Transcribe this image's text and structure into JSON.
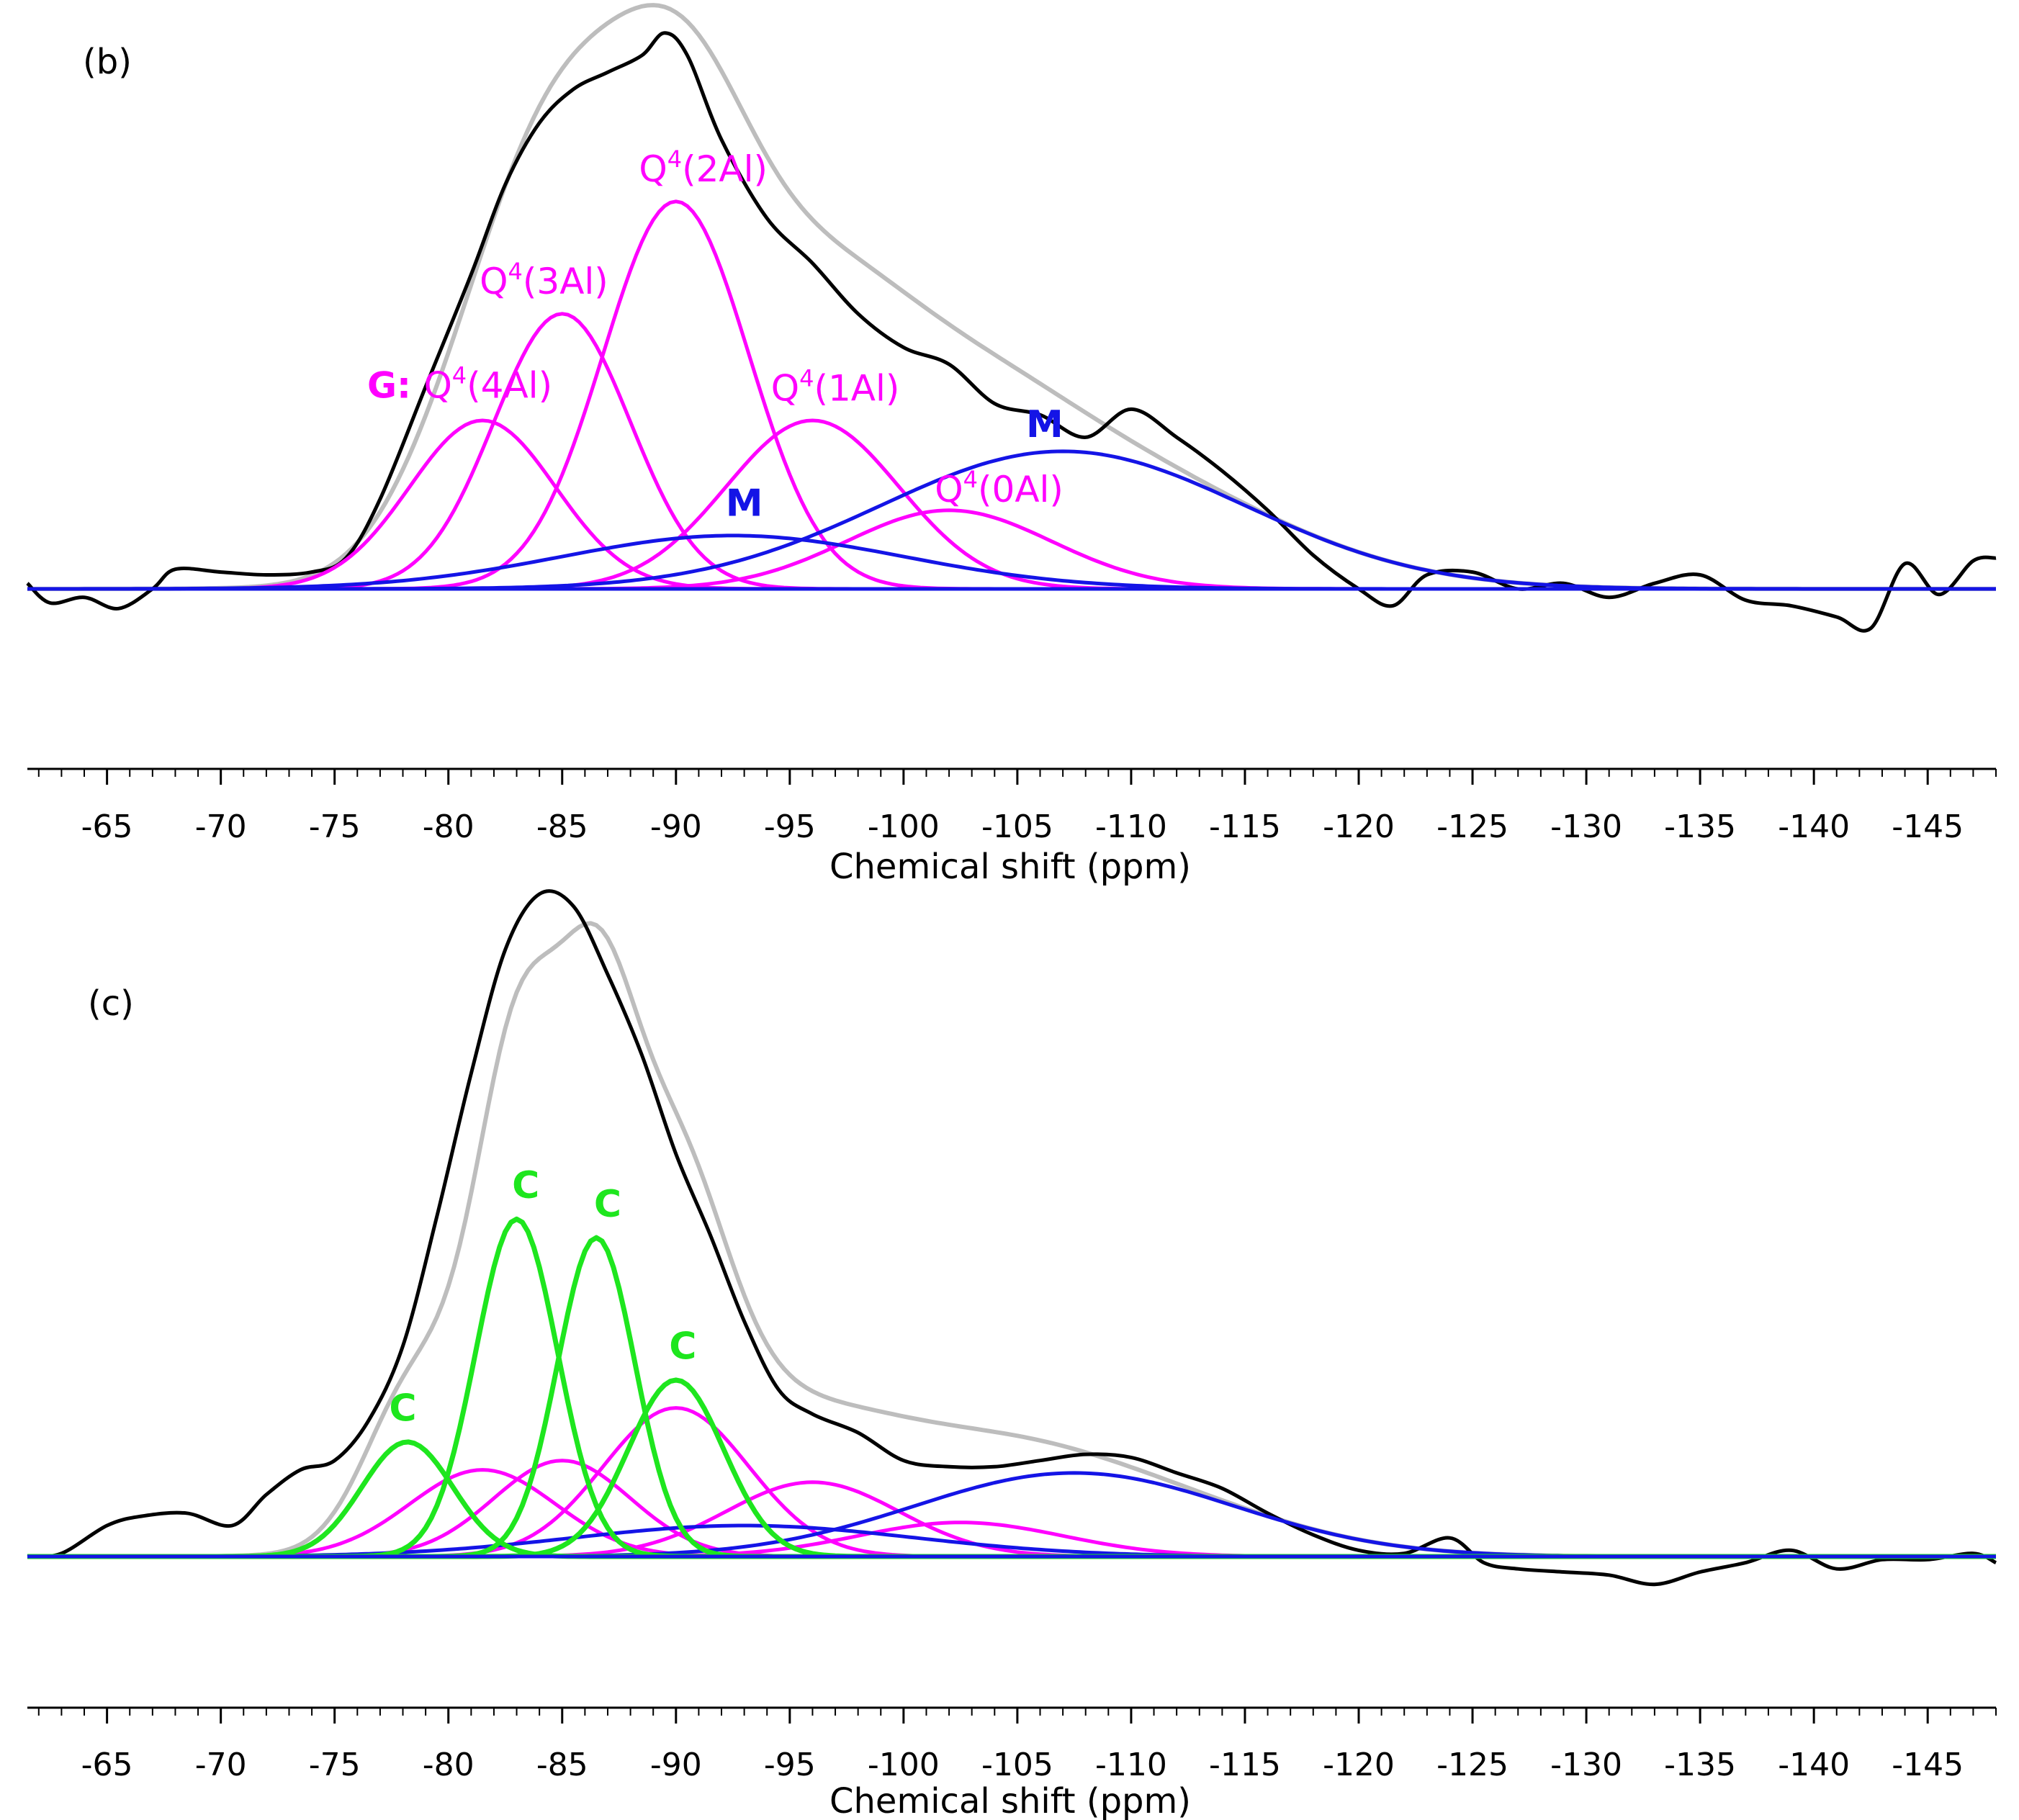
{
  "colors": {
    "experimental": "#000000",
    "total_fit": "#bdbdbd",
    "gel_G": "#ff00ff",
    "mineral_M": "#1414e6",
    "crystalline_C": "#1ee61e",
    "axis": "#000000"
  },
  "chart_data": [
    {
      "type": "line",
      "panel_label": "(b)",
      "xlabel": "Chemical shift (ppm)",
      "ylabel": "",
      "xlim": [
        -61.5,
        -148
      ],
      "ylim": [
        -0.35,
        1.0
      ],
      "x_ticks": [
        -65,
        -70,
        -75,
        -80,
        -85,
        -90,
        -95,
        -100,
        -105,
        -110,
        -115,
        -120,
        -125,
        -130,
        -135,
        -140,
        -145
      ],
      "x_tick_labels": [
        "-65",
        "-70",
        "-75",
        "-80",
        "-85",
        "-90",
        "-95",
        "-100",
        "-105",
        "-110",
        "-115",
        "-120",
        "-125",
        "-130",
        "-135",
        "-140",
        "-145"
      ],
      "grid": false,
      "baseline": 0,
      "series": [
        {
          "name": "Q4(4Al)",
          "group": "G",
          "color_key": "gel_G",
          "center": -81.5,
          "height": 0.3,
          "width": 3.2
        },
        {
          "name": "Q4(3Al)",
          "group": "G",
          "color_key": "gel_G",
          "center": -85.0,
          "height": 0.49,
          "width": 3.0
        },
        {
          "name": "Q4(2Al)",
          "group": "G",
          "color_key": "gel_G",
          "center": -90.0,
          "height": 0.69,
          "width": 3.2
        },
        {
          "name": "Q4(1Al)",
          "group": "G",
          "color_key": "gel_G",
          "center": -96.0,
          "height": 0.3,
          "width": 3.8
        },
        {
          "name": "Q4(0Al)",
          "group": "G",
          "color_key": "gel_G",
          "center": -102.0,
          "height": 0.14,
          "width": 4.5
        },
        {
          "name": "M",
          "group": "M",
          "color_key": "mineral_M",
          "center": -92.5,
          "height": 0.095,
          "width": 7.5
        },
        {
          "name": "M",
          "group": "M",
          "color_key": "mineral_M",
          "center": -107.0,
          "height": 0.245,
          "width": 8.0
        }
      ],
      "experimental": {
        "x": [
          -61.5,
          -62.5,
          -64,
          -65.5,
          -67,
          -68,
          -70,
          -72,
          -74,
          -75.5,
          -77,
          -79,
          -81,
          -82.5,
          -84,
          -85.5,
          -87,
          -88.5,
          -89.5,
          -90.5,
          -92,
          -94,
          -96,
          -98,
          -100,
          -102,
          -104,
          -106,
          -108,
          -110,
          -112,
          -114,
          -116,
          -118,
          -120,
          -121.5,
          -123,
          -125,
          -127,
          -129,
          -131,
          -133,
          -135,
          -137,
          -139,
          -141,
          -142.5,
          -144,
          -145.5,
          -147,
          -148
        ],
        "y": [
          0.01,
          -0.025,
          -0.015,
          -0.035,
          0.0,
          0.035,
          0.03,
          0.025,
          0.03,
          0.055,
          0.16,
          0.36,
          0.56,
          0.72,
          0.83,
          0.89,
          0.92,
          0.95,
          0.99,
          0.95,
          0.8,
          0.66,
          0.58,
          0.49,
          0.43,
          0.4,
          0.33,
          0.31,
          0.27,
          0.32,
          0.27,
          0.21,
          0.14,
          0.06,
          0.0,
          -0.03,
          0.025,
          0.03,
          0.0,
          0.01,
          -0.015,
          0.01,
          0.025,
          -0.02,
          -0.03,
          -0.05,
          -0.07,
          0.045,
          -0.01,
          0.05,
          0.055
        ]
      },
      "annotations": [
        {
          "id": "q4_4al",
          "prefix": "G: ",
          "main": "Q",
          "sup": "4",
          "suffix": "(4Al)",
          "color_key": "gel_G",
          "x": -80.5,
          "y": 0.325,
          "anchor": "middle"
        },
        {
          "id": "q4_3al",
          "prefix": "",
          "main": "Q",
          "sup": "4",
          "suffix": "(3Al)",
          "color_key": "gel_G",
          "x": -84.2,
          "y": 0.51,
          "anchor": "middle"
        },
        {
          "id": "q4_2al",
          "prefix": "",
          "main": "Q",
          "sup": "4",
          "suffix": "(2Al)",
          "color_key": "gel_G",
          "x": -91.2,
          "y": 0.71,
          "anchor": "middle"
        },
        {
          "id": "q4_1al",
          "prefix": "",
          "main": "Q",
          "sup": "4",
          "suffix": "(1Al)",
          "color_key": "gel_G",
          "x": -97.0,
          "y": 0.32,
          "anchor": "middle"
        },
        {
          "id": "q4_0al",
          "prefix": "",
          "main": "Q",
          "sup": "4",
          "suffix": "(0Al)",
          "color_key": "gel_G",
          "x": -104.2,
          "y": 0.14,
          "anchor": "middle"
        },
        {
          "id": "m_small",
          "prefix": "",
          "main": "M",
          "sup": "",
          "suffix": "",
          "color_key": "mineral_M",
          "x": -93.0,
          "y": 0.115,
          "anchor": "middle",
          "bold": true
        },
        {
          "id": "m_large",
          "prefix": "",
          "main": "M",
          "sup": "",
          "suffix": "",
          "color_key": "mineral_M",
          "x": -106.2,
          "y": 0.255,
          "anchor": "middle",
          "bold": true
        }
      ]
    },
    {
      "type": "line",
      "panel_label": "(c)",
      "xlabel": "Chemical shift (ppm)",
      "ylabel": "",
      "xlim": [
        -61.5,
        -148
      ],
      "ylim": [
        -0.25,
        1.0
      ],
      "x_ticks": [
        -65,
        -70,
        -75,
        -80,
        -85,
        -90,
        -95,
        -100,
        -105,
        -110,
        -115,
        -120,
        -125,
        -130,
        -135,
        -140,
        -145
      ],
      "x_tick_labels": [
        "-65",
        "-70",
        "-75",
        "-80",
        "-85",
        "-90",
        "-95",
        "-100",
        "-105",
        "-110",
        "-115",
        "-120",
        "-125",
        "-130",
        "-135",
        "-140",
        "-145"
      ],
      "grid": false,
      "baseline": 0,
      "series": [
        {
          "name": "C",
          "group": "C",
          "color_key": "crystalline_C",
          "center": -78.2,
          "height": 0.185,
          "width": 2.0
        },
        {
          "name": "C",
          "group": "C",
          "color_key": "crystalline_C",
          "center": -83.0,
          "height": 0.545,
          "width": 1.8
        },
        {
          "name": "C",
          "group": "C",
          "color_key": "crystalline_C",
          "center": -86.5,
          "height": 0.515,
          "width": 1.7
        },
        {
          "name": "C",
          "group": "C",
          "color_key": "crystalline_C",
          "center": -90.0,
          "height": 0.285,
          "width": 2.1
        },
        {
          "name": "Q4(4Al)",
          "group": "G",
          "color_key": "gel_G",
          "center": -81.5,
          "height": 0.14,
          "width": 3.2
        },
        {
          "name": "Q4(3Al)",
          "group": "G",
          "color_key": "gel_G",
          "center": -85.0,
          "height": 0.155,
          "width": 3.0
        },
        {
          "name": "Q4(2Al)",
          "group": "G",
          "color_key": "gel_G",
          "center": -90.0,
          "height": 0.24,
          "width": 3.2
        },
        {
          "name": "Q4(1Al)",
          "group": "G",
          "color_key": "gel_G",
          "center": -96.0,
          "height": 0.12,
          "width": 3.8
        },
        {
          "name": "Q4(0Al)",
          "group": "G",
          "color_key": "gel_G",
          "center": -102.5,
          "height": 0.055,
          "width": 4.5
        },
        {
          "name": "M",
          "group": "M",
          "color_key": "mineral_M",
          "center": -93.0,
          "height": 0.05,
          "width": 7.5
        },
        {
          "name": "M",
          "group": "M",
          "color_key": "mineral_M",
          "center": -107.5,
          "height": 0.135,
          "width": 7.0
        }
      ],
      "experimental": {
        "x": [
          -61.5,
          -63,
          -65,
          -66.5,
          -68.5,
          -70.5,
          -72,
          -73.5,
          -75,
          -76.5,
          -78,
          -79.5,
          -81,
          -82.5,
          -84,
          -85.5,
          -87,
          -88.5,
          -90,
          -91.5,
          -93,
          -94.5,
          -96,
          -98,
          -100,
          -102,
          -104,
          -106,
          -108,
          -110,
          -112,
          -114,
          -116,
          -118,
          -120,
          -122,
          -124,
          -125.5,
          -127,
          -129,
          -131,
          -133,
          -135,
          -137,
          -139,
          -141,
          -143,
          -145,
          -147,
          -148
        ],
        "y": [
          0.0,
          0.005,
          0.05,
          0.065,
          0.07,
          0.05,
          0.1,
          0.14,
          0.155,
          0.22,
          0.34,
          0.55,
          0.78,
          0.98,
          1.07,
          1.05,
          0.94,
          0.81,
          0.65,
          0.52,
          0.38,
          0.27,
          0.23,
          0.2,
          0.155,
          0.145,
          0.145,
          0.155,
          0.165,
          0.16,
          0.135,
          0.11,
          0.07,
          0.035,
          0.01,
          0.005,
          0.03,
          -0.01,
          -0.02,
          -0.025,
          -0.03,
          -0.045,
          -0.025,
          -0.01,
          0.01,
          -0.02,
          -0.005,
          -0.005,
          0.005,
          -0.01
        ]
      },
      "annotations": [
        {
          "id": "c1",
          "prefix": "",
          "main": "C",
          "sup": "",
          "suffix": "",
          "color_key": "crystalline_C",
          "x": -78.0,
          "y": 0.205,
          "anchor": "middle",
          "bold": true
        },
        {
          "id": "c2",
          "prefix": "",
          "main": "C",
          "sup": "",
          "suffix": "",
          "color_key": "crystalline_C",
          "x": -83.4,
          "y": 0.565,
          "anchor": "middle",
          "bold": true
        },
        {
          "id": "c3",
          "prefix": "",
          "main": "C",
          "sup": "",
          "suffix": "",
          "color_key": "crystalline_C",
          "x": -87.0,
          "y": 0.535,
          "anchor": "middle",
          "bold": true
        },
        {
          "id": "c4",
          "prefix": "",
          "main": "C",
          "sup": "",
          "suffix": "",
          "color_key": "crystalline_C",
          "x": -90.3,
          "y": 0.305,
          "anchor": "middle",
          "bold": true
        }
      ]
    }
  ]
}
